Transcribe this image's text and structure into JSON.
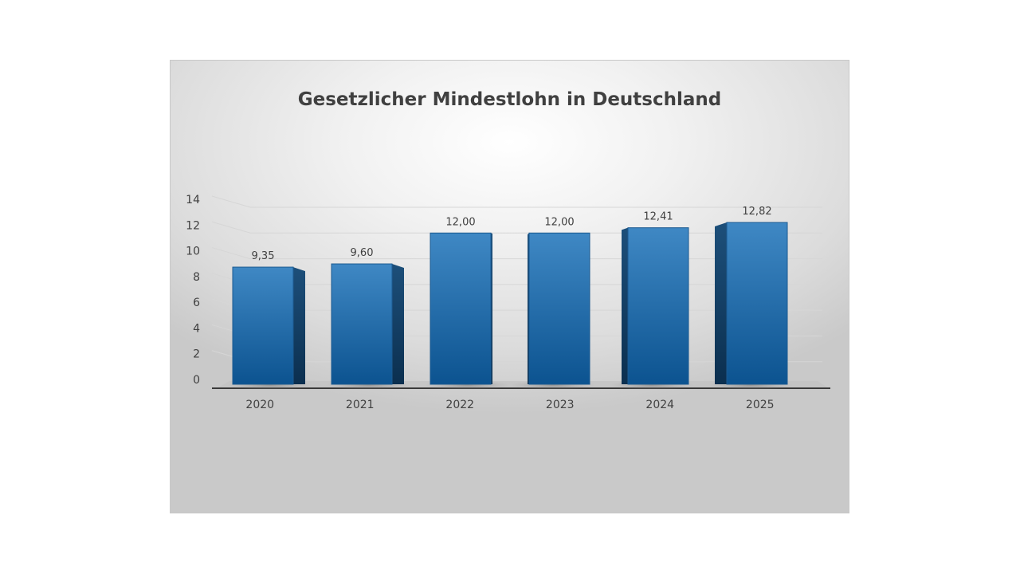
{
  "chart_data": {
    "type": "bar",
    "title": "Gesetzlicher Mindestlohn in Deutschland",
    "xlabel": "",
    "ylabel": "",
    "categories": [
      "2020",
      "2021",
      "2022",
      "2023",
      "2024",
      "2025"
    ],
    "values": [
      9.35,
      9.6,
      12.0,
      12.0,
      12.41,
      12.82
    ],
    "data_labels": [
      "9,35",
      "9,60",
      "12,00",
      "12,00",
      "12,41",
      "12,82"
    ],
    "yticks": [
      0,
      2,
      4,
      6,
      8,
      10,
      12,
      14
    ],
    "ylim": [
      0,
      14
    ],
    "grid": true,
    "legend": "none",
    "bar_color": "#2E75B6",
    "style": "3d-column"
  }
}
